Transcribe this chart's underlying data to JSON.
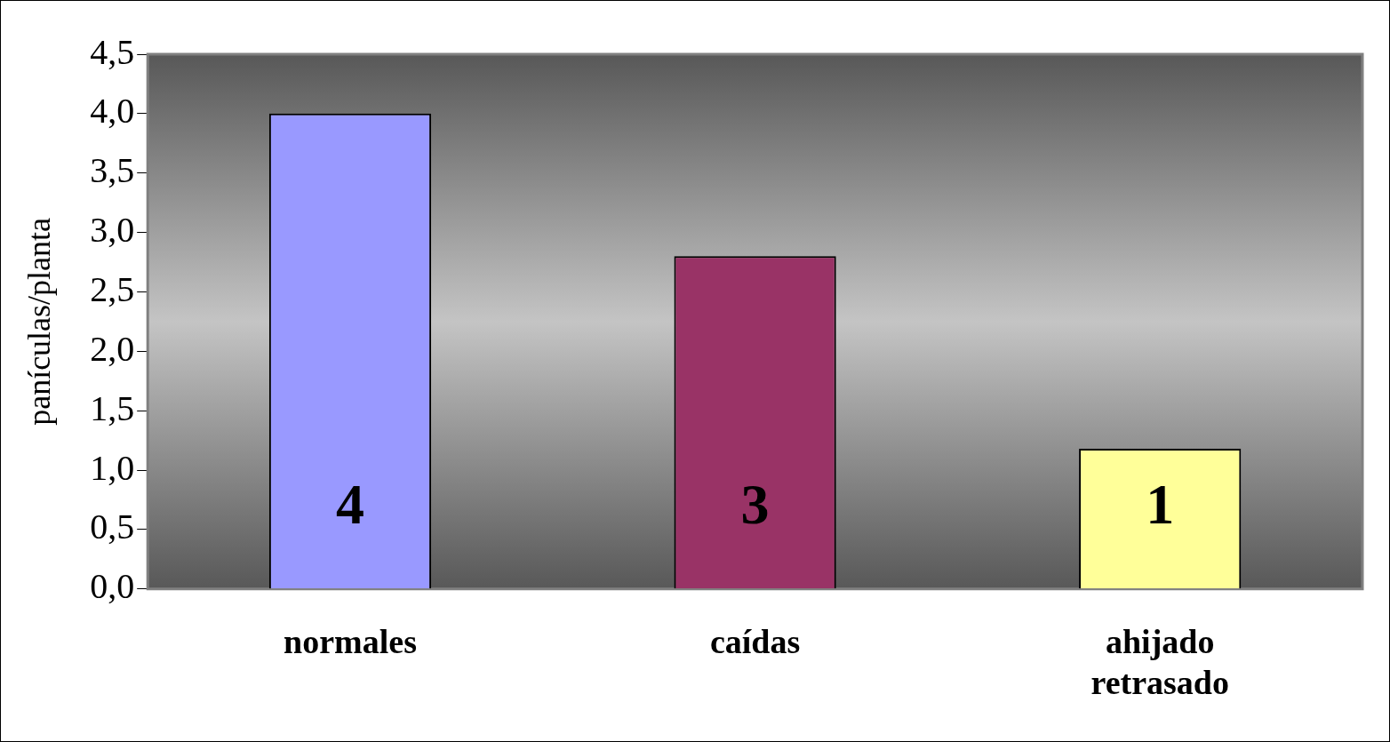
{
  "chart_data": {
    "type": "bar",
    "ylabel": "panículas/planta",
    "categories": [
      "normales",
      "caídas",
      "ahijado retrasado"
    ],
    "values": [
      4.0,
      2.8,
      1.18
    ],
    "colors": [
      "#9999ff",
      "#993366",
      "#ffff99"
    ],
    "value_labels": [
      "4",
      "3",
      "1"
    ],
    "ylim": [
      0,
      4.5
    ],
    "yticks": [
      {
        "value": 0,
        "label": "0,0"
      },
      {
        "value": 0.5,
        "label": "0,5"
      },
      {
        "value": 1,
        "label": "1,0"
      },
      {
        "value": 1.5,
        "label": "1,5"
      },
      {
        "value": 2,
        "label": "2,0"
      },
      {
        "value": 2.5,
        "label": "2,5"
      },
      {
        "value": 3,
        "label": "3,0"
      },
      {
        "value": 3.5,
        "label": "3,5"
      },
      {
        "value": 4,
        "label": "4,0"
      },
      {
        "value": 4.5,
        "label": "4,5"
      }
    ],
    "grid": false,
    "legend": false
  }
}
